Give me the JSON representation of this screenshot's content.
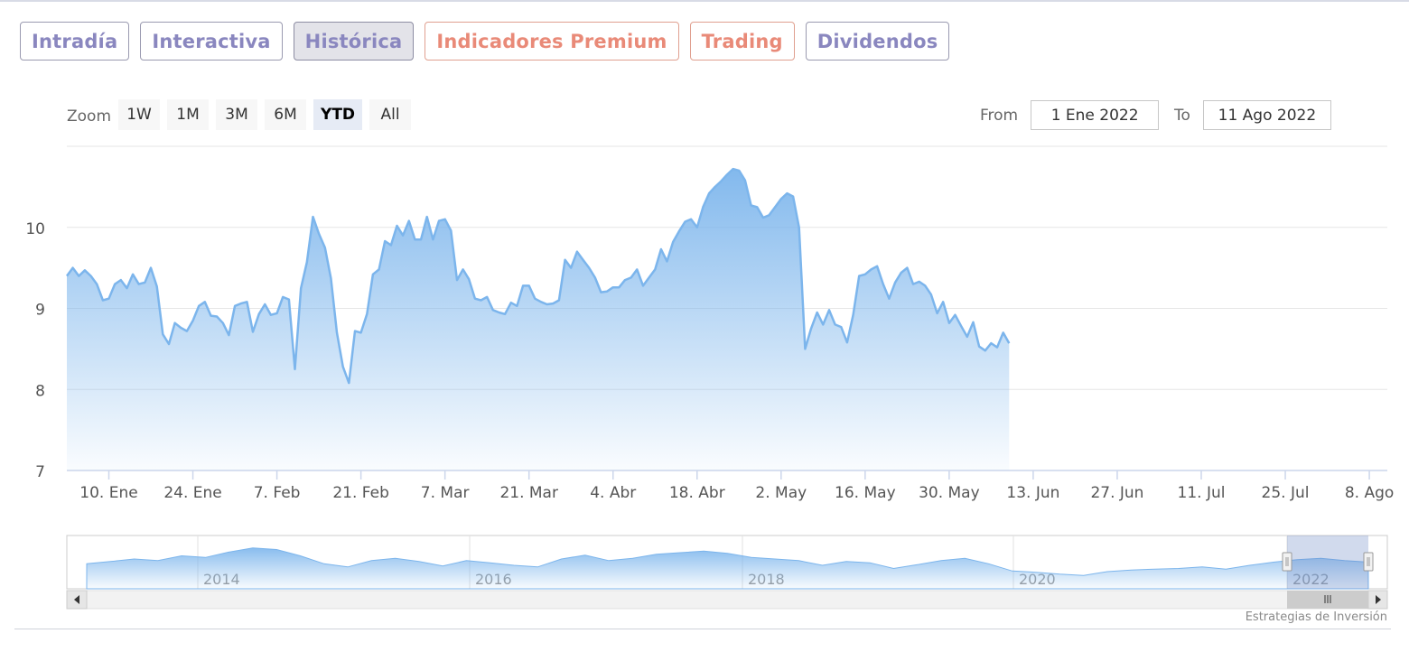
{
  "tabs": [
    {
      "label": "Intradía",
      "color": "purple",
      "active": false
    },
    {
      "label": "Interactiva",
      "color": "purple",
      "active": false
    },
    {
      "label": "Histórica",
      "color": "purple",
      "active": true
    },
    {
      "label": "Indicadores Premium",
      "color": "salmon",
      "active": false
    },
    {
      "label": "Trading",
      "color": "salmon",
      "active": false
    },
    {
      "label": "Dividendos",
      "color": "purple",
      "active": false
    }
  ],
  "zoom": {
    "label": "Zoom",
    "buttons": [
      {
        "label": "1W",
        "selected": false
      },
      {
        "label": "1M",
        "selected": false
      },
      {
        "label": "3M",
        "selected": false
      },
      {
        "label": "6M",
        "selected": false
      },
      {
        "label": "YTD",
        "selected": true
      },
      {
        "label": "All",
        "selected": false
      }
    ]
  },
  "range": {
    "from_label": "From",
    "from_value": "1 Ene 2022",
    "to_label": "To",
    "to_value": "11 Ago 2022"
  },
  "credit": "Estrategias de Inversión",
  "colors": {
    "line": "#7cb5ec",
    "area_top": "#7cb5ec",
    "navigator_mask": "#6685c2"
  },
  "chart_data": {
    "type": "area",
    "title": "",
    "xlabel": "",
    "ylabel": "",
    "ylim": [
      7,
      11
    ],
    "yticks": [
      7,
      8,
      9,
      10
    ],
    "xlim": [
      "2022-01-03",
      "2022-08-11"
    ],
    "xticks": [
      {
        "date": "2022-01-10",
        "label": "10. Ene"
      },
      {
        "date": "2022-01-24",
        "label": "24. Ene"
      },
      {
        "date": "2022-02-07",
        "label": "7. Feb"
      },
      {
        "date": "2022-02-21",
        "label": "21. Feb"
      },
      {
        "date": "2022-03-07",
        "label": "7. Mar"
      },
      {
        "date": "2022-03-21",
        "label": "21. Mar"
      },
      {
        "date": "2022-04-04",
        "label": "4. Abr"
      },
      {
        "date": "2022-04-18",
        "label": "18. Abr"
      },
      {
        "date": "2022-05-02",
        "label": "2. May"
      },
      {
        "date": "2022-05-16",
        "label": "16. May"
      },
      {
        "date": "2022-05-30",
        "label": "30. May"
      },
      {
        "date": "2022-06-13",
        "label": "13. Jun"
      },
      {
        "date": "2022-06-27",
        "label": "27. Jun"
      },
      {
        "date": "2022-07-11",
        "label": "11. Jul"
      },
      {
        "date": "2022-07-25",
        "label": "25. Jul"
      },
      {
        "date": "2022-08-08",
        "label": "8. Ago"
      }
    ],
    "grid": true,
    "legend": "none",
    "series": [
      {
        "points": [
          [
            "2022-01-03",
            9.4
          ],
          [
            "2022-01-04",
            9.5
          ],
          [
            "2022-01-05",
            9.4
          ],
          [
            "2022-01-06",
            9.47
          ],
          [
            "2022-01-07",
            9.4
          ],
          [
            "2022-01-08",
            9.3
          ],
          [
            "2022-01-09",
            9.1
          ],
          [
            "2022-01-10",
            9.12
          ],
          [
            "2022-01-11",
            9.3
          ],
          [
            "2022-01-12",
            9.35
          ],
          [
            "2022-01-13",
            9.25
          ],
          [
            "2022-01-14",
            9.42
          ],
          [
            "2022-01-15",
            9.3
          ],
          [
            "2022-01-16",
            9.32
          ],
          [
            "2022-01-17",
            9.5
          ],
          [
            "2022-01-18",
            9.27
          ],
          [
            "2022-01-19",
            8.68
          ],
          [
            "2022-01-20",
            8.56
          ],
          [
            "2022-01-21",
            8.82
          ],
          [
            "2022-01-22",
            8.76
          ],
          [
            "2022-01-23",
            8.72
          ],
          [
            "2022-01-24",
            8.85
          ],
          [
            "2022-01-25",
            9.03
          ],
          [
            "2022-01-26",
            9.08
          ],
          [
            "2022-01-27",
            8.91
          ],
          [
            "2022-01-28",
            8.9
          ],
          [
            "2022-01-29",
            8.82
          ],
          [
            "2022-01-30",
            8.67
          ],
          [
            "2022-01-31",
            9.03
          ],
          [
            "2022-02-01",
            9.06
          ],
          [
            "2022-02-02",
            9.08
          ],
          [
            "2022-02-03",
            8.71
          ],
          [
            "2022-02-04",
            8.93
          ],
          [
            "2022-02-05",
            9.05
          ],
          [
            "2022-02-06",
            8.92
          ],
          [
            "2022-02-07",
            8.94
          ],
          [
            "2022-02-08",
            9.14
          ],
          [
            "2022-02-09",
            9.11
          ],
          [
            "2022-02-10",
            8.25
          ],
          [
            "2022-02-11",
            9.25
          ],
          [
            "2022-02-12",
            9.57
          ],
          [
            "2022-02-13",
            10.13
          ],
          [
            "2022-02-14",
            9.92
          ],
          [
            "2022-02-15",
            9.75
          ],
          [
            "2022-02-16",
            9.37
          ],
          [
            "2022-02-17",
            8.7
          ],
          [
            "2022-02-18",
            8.28
          ],
          [
            "2022-02-19",
            8.08
          ],
          [
            "2022-02-20",
            8.72
          ],
          [
            "2022-02-21",
            8.7
          ],
          [
            "2022-02-22",
            8.93
          ],
          [
            "2022-02-23",
            9.42
          ],
          [
            "2022-02-24",
            9.48
          ],
          [
            "2022-02-25",
            9.83
          ],
          [
            "2022-02-26",
            9.78
          ],
          [
            "2022-02-27",
            10.02
          ],
          [
            "2022-02-28",
            9.9
          ],
          [
            "2022-03-01",
            10.08
          ],
          [
            "2022-03-02",
            9.85
          ],
          [
            "2022-03-03",
            9.85
          ],
          [
            "2022-03-04",
            10.13
          ],
          [
            "2022-03-05",
            9.85
          ],
          [
            "2022-03-06",
            10.08
          ],
          [
            "2022-03-07",
            10.1
          ],
          [
            "2022-03-08",
            9.96
          ],
          [
            "2022-03-09",
            9.35
          ],
          [
            "2022-03-10",
            9.48
          ],
          [
            "2022-03-11",
            9.36
          ],
          [
            "2022-03-12",
            9.12
          ],
          [
            "2022-03-13",
            9.1
          ],
          [
            "2022-03-14",
            9.14
          ],
          [
            "2022-03-15",
            8.98
          ],
          [
            "2022-03-16",
            8.95
          ],
          [
            "2022-03-17",
            8.93
          ],
          [
            "2022-03-18",
            9.07
          ],
          [
            "2022-03-19",
            9.03
          ],
          [
            "2022-03-20",
            9.28
          ],
          [
            "2022-03-21",
            9.28
          ],
          [
            "2022-03-22",
            9.12
          ],
          [
            "2022-03-23",
            9.08
          ],
          [
            "2022-03-24",
            9.05
          ],
          [
            "2022-03-25",
            9.06
          ],
          [
            "2022-03-26",
            9.1
          ],
          [
            "2022-03-27",
            9.6
          ],
          [
            "2022-03-28",
            9.5
          ],
          [
            "2022-03-29",
            9.7
          ],
          [
            "2022-03-30",
            9.6
          ],
          [
            "2022-03-31",
            9.5
          ],
          [
            "2022-04-01",
            9.38
          ],
          [
            "2022-04-02",
            9.2
          ],
          [
            "2022-04-03",
            9.21
          ],
          [
            "2022-04-04",
            9.26
          ],
          [
            "2022-04-05",
            9.26
          ],
          [
            "2022-04-06",
            9.35
          ],
          [
            "2022-04-07",
            9.38
          ],
          [
            "2022-04-08",
            9.48
          ],
          [
            "2022-04-09",
            9.28
          ],
          [
            "2022-04-10",
            9.38
          ],
          [
            "2022-04-11",
            9.48
          ],
          [
            "2022-04-12",
            9.73
          ],
          [
            "2022-04-13",
            9.58
          ],
          [
            "2022-04-14",
            9.82
          ],
          [
            "2022-04-15",
            9.95
          ],
          [
            "2022-04-16",
            10.07
          ],
          [
            "2022-04-17",
            10.1
          ],
          [
            "2022-04-18",
            10.0
          ],
          [
            "2022-04-19",
            10.25
          ],
          [
            "2022-04-20",
            10.42
          ],
          [
            "2022-04-21",
            10.5
          ],
          [
            "2022-04-22",
            10.57
          ],
          [
            "2022-04-23",
            10.65
          ],
          [
            "2022-04-24",
            10.72
          ],
          [
            "2022-04-25",
            10.7
          ],
          [
            "2022-04-26",
            10.58
          ],
          [
            "2022-04-27",
            10.27
          ],
          [
            "2022-04-28",
            10.25
          ],
          [
            "2022-04-29",
            10.12
          ],
          [
            "2022-04-30",
            10.15
          ],
          [
            "2022-05-01",
            10.25
          ],
          [
            "2022-05-02",
            10.35
          ],
          [
            "2022-05-03",
            10.42
          ],
          [
            "2022-05-04",
            10.38
          ],
          [
            "2022-05-05",
            10.0
          ],
          [
            "2022-05-06",
            8.5
          ],
          [
            "2022-05-07",
            8.75
          ],
          [
            "2022-05-08",
            8.95
          ],
          [
            "2022-05-09",
            8.8
          ],
          [
            "2022-05-10",
            8.98
          ],
          [
            "2022-05-11",
            8.8
          ],
          [
            "2022-05-12",
            8.77
          ],
          [
            "2022-05-13",
            8.58
          ],
          [
            "2022-05-14",
            8.92
          ],
          [
            "2022-05-15",
            9.4
          ],
          [
            "2022-05-16",
            9.42
          ],
          [
            "2022-05-17",
            9.48
          ],
          [
            "2022-05-18",
            9.52
          ],
          [
            "2022-05-19",
            9.3
          ],
          [
            "2022-05-20",
            9.12
          ],
          [
            "2022-05-21",
            9.32
          ],
          [
            "2022-05-22",
            9.44
          ],
          [
            "2022-05-23",
            9.5
          ],
          [
            "2022-05-24",
            9.3
          ],
          [
            "2022-05-25",
            9.33
          ],
          [
            "2022-05-26",
            9.28
          ],
          [
            "2022-05-27",
            9.17
          ],
          [
            "2022-05-28",
            8.94
          ],
          [
            "2022-05-29",
            9.08
          ],
          [
            "2022-05-30",
            8.82
          ],
          [
            "2022-05-31",
            8.92
          ],
          [
            "2022-06-01",
            8.78
          ],
          [
            "2022-06-02",
            8.65
          ],
          [
            "2022-06-03",
            8.83
          ],
          [
            "2022-06-04",
            8.53
          ],
          [
            "2022-06-05",
            8.48
          ],
          [
            "2022-06-06",
            8.57
          ],
          [
            "2022-06-07",
            8.52
          ],
          [
            "2022-06-08",
            8.7
          ],
          [
            "2022-06-09",
            8.57
          ]
        ]
      }
    ],
    "navigator": {
      "type": "area",
      "x_labels": [
        "2014",
        "2016",
        "2018",
        "2020",
        "2022"
      ],
      "values": [
        0.45,
        0.52,
        0.6,
        0.55,
        0.7,
        0.65,
        0.82,
        0.95,
        0.9,
        0.7,
        0.45,
        0.35,
        0.55,
        0.62,
        0.52,
        0.38,
        0.55,
        0.48,
        0.4,
        0.35,
        0.6,
        0.72,
        0.55,
        0.62,
        0.75,
        0.8,
        0.85,
        0.78,
        0.65,
        0.6,
        0.55,
        0.4,
        0.52,
        0.48,
        0.3,
        0.42,
        0.55,
        0.62,
        0.45,
        0.22,
        0.18,
        0.12,
        0.08,
        0.2,
        0.25,
        0.28,
        0.3,
        0.35,
        0.28,
        0.4,
        0.5,
        0.58,
        0.62,
        0.55,
        0.5
      ]
    }
  }
}
